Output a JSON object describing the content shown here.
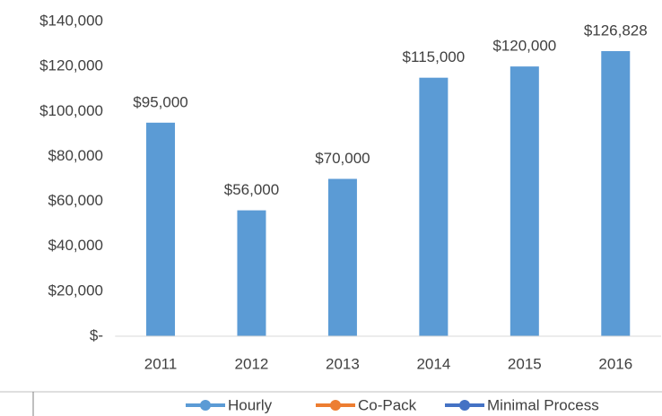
{
  "chart_data": {
    "type": "bar",
    "categories": [
      "2011",
      "2012",
      "2013",
      "2014",
      "2015",
      "2016"
    ],
    "values": [
      95000,
      56000,
      70000,
      115000,
      120000,
      126828
    ],
    "value_labels": [
      "$95,000",
      "$56,000",
      "$70,000",
      "$115,000",
      "$120,000",
      "$126,828"
    ],
    "color": "#5b9bd5",
    "ylim": [
      0,
      140000
    ],
    "yticks": [
      {
        "value": 0,
        "label": "$-"
      },
      {
        "value": 20000,
        "label": "$20,000"
      },
      {
        "value": 40000,
        "label": "$40,000"
      },
      {
        "value": 60000,
        "label": "$60,000"
      },
      {
        "value": 80000,
        "label": "$80,000"
      },
      {
        "value": 100000,
        "label": "$100,000"
      },
      {
        "value": 120000,
        "label": "$120,000"
      },
      {
        "value": 140000,
        "label": "$140,000"
      }
    ],
    "grid": false
  },
  "other_legend": {
    "items": [
      {
        "name": "Hourly",
        "color": "#5b9bd5"
      },
      {
        "name": "Co-Pack",
        "color": "#ed7d31"
      },
      {
        "name": "Minimal Process",
        "color": "#4472c4"
      }
    ]
  }
}
